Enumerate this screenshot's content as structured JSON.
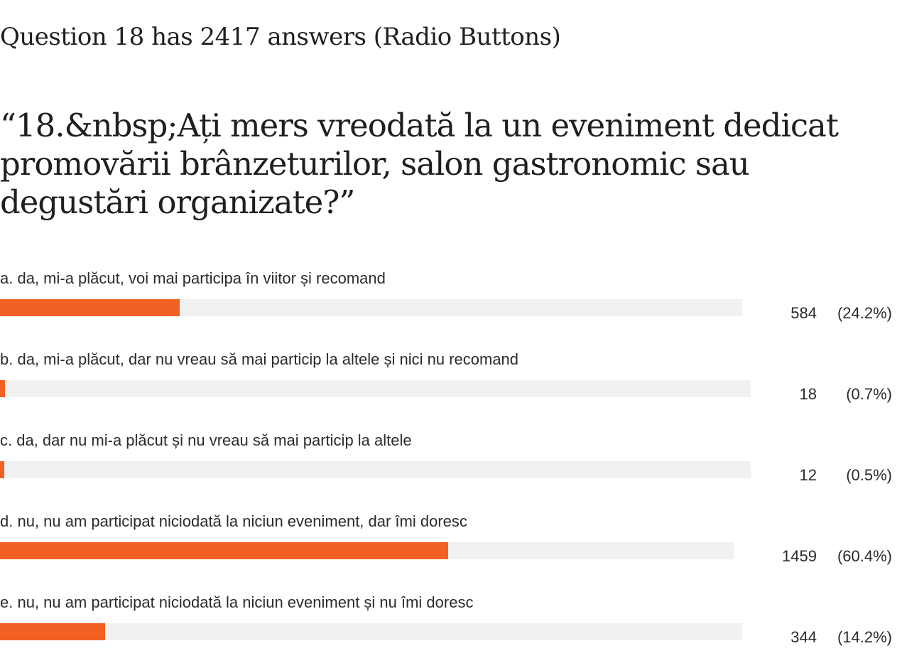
{
  "header": {
    "question_summary": "Question 18 has 2417 answers (Radio Buttons)"
  },
  "question": {
    "text": "“18.&nbsp;Ați mers vreodată la un eveniment dedicat promovării brânzeturilor, salon gastronomic sau degustări organizate?”"
  },
  "colors": {
    "bar_fill": "#f26124",
    "bar_track": "#f1f1f1"
  },
  "chart_data": {
    "type": "bar",
    "orientation": "horizontal",
    "total_answers": 2417,
    "categories": [
      "a. da, mi-a plăcut, voi mai participa în viitor și recomand",
      "b. da, mi-a plăcut, dar nu vreau să mai particip la altele și nici nu recomand",
      "c. da, dar nu mi-a plăcut și nu vreau să mai particip la altele",
      "d. nu, nu am participat niciodată la niciun eveniment, dar îmi doresc",
      "e. nu, nu am participat niciodată la niciun eveniment și nu îmi doresc"
    ],
    "values": [
      584,
      18,
      12,
      1459,
      344
    ],
    "percent_labels": [
      "(24.2%)",
      "(0.7%)",
      "(0.5%)",
      "(60.4%)",
      "(14.2%)"
    ],
    "percent_values": [
      24.2,
      0.7,
      0.5,
      60.4,
      14.2
    ]
  }
}
